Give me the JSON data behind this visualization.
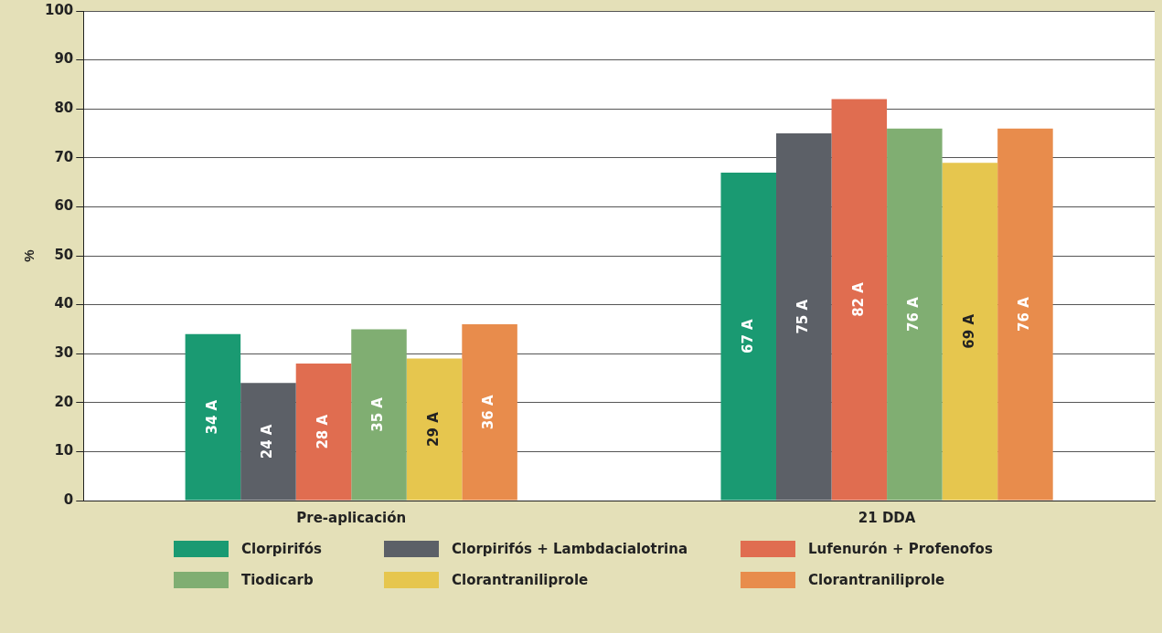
{
  "chart_data": {
    "type": "bar",
    "ylabel": "%",
    "categories": [
      "Pre-aplicación",
      "21 DDA"
    ],
    "series": [
      {
        "name": "Clorpirifós",
        "color": "#1a9a72",
        "values": [
          34,
          67
        ],
        "value_labels": [
          "34 A",
          "67 A"
        ]
      },
      {
        "name": "Clorpirifós + Lambdacialotrina",
        "color": "#5c6067",
        "values": [
          24,
          75
        ],
        "value_labels": [
          "24 A",
          "75 A"
        ]
      },
      {
        "name": "Lufenurón + Profenofos",
        "color": "#e06d50",
        "values": [
          28,
          82
        ],
        "value_labels": [
          "28 A",
          "82 A"
        ]
      },
      {
        "name": "Tiodicarb",
        "color": "#80ae72",
        "values": [
          35,
          76
        ],
        "value_labels": [
          "35 A",
          "76 A"
        ]
      },
      {
        "name": "Clorantraniliprole",
        "color": "#e6c64e",
        "values": [
          29,
          69
        ],
        "value_labels": [
          "29 A",
          "69 A"
        ]
      },
      {
        "name": "Clorantraniliprole",
        "color": "#e88c4c",
        "values": [
          36,
          76
        ],
        "value_labels": [
          "36 A",
          "76 A"
        ]
      }
    ],
    "ylim": [
      0,
      100
    ],
    "yticks": [
      0,
      10,
      20,
      30,
      40,
      50,
      60,
      70,
      80,
      90,
      100
    ],
    "grid": "y",
    "legend": "bottom"
  }
}
